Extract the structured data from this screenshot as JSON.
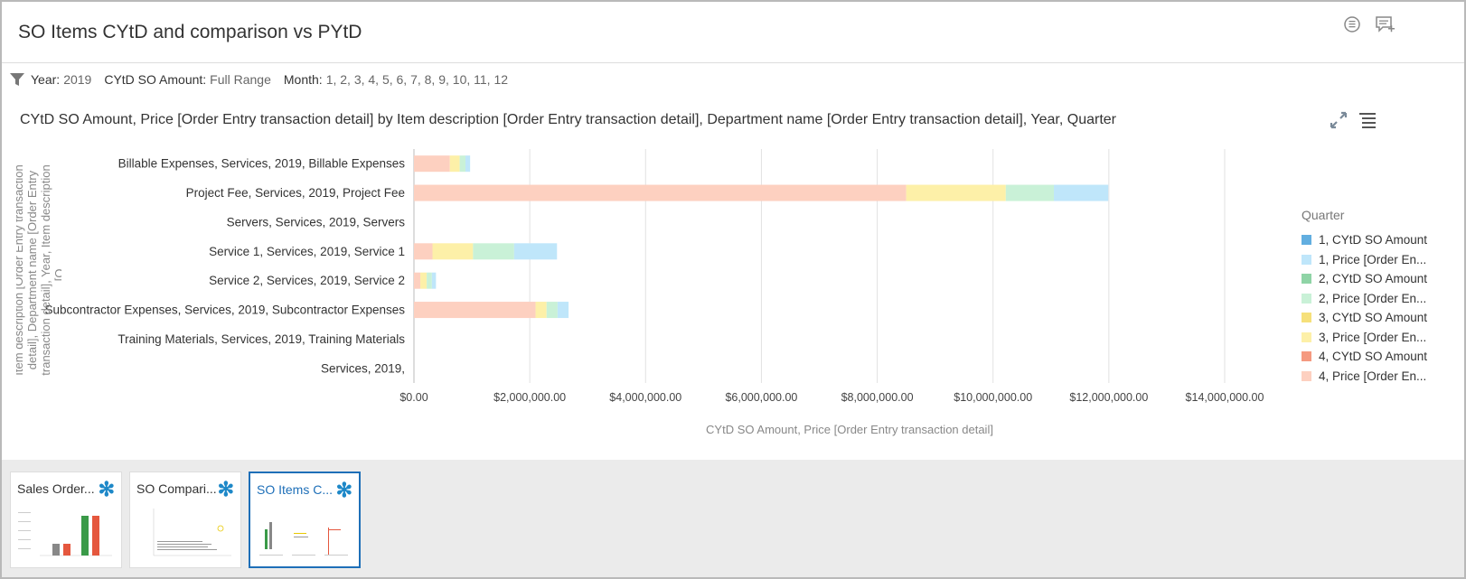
{
  "header": {
    "title": "SO Items CYtD and comparison vs PYtD",
    "icons": [
      "comments-icon",
      "add-note-icon"
    ]
  },
  "filters": [
    {
      "label": "Year:",
      "value": "2019"
    },
    {
      "label": "CYtD SO Amount:",
      "value": "Full Range"
    },
    {
      "label": "Month:",
      "value": "1, 2, 3, 4, 5, 6, 7, 8, 9, 10, 11, 12"
    }
  ],
  "chart_data": {
    "type": "bar",
    "orientation": "horizontal",
    "stacked": true,
    "title": "CYtD SO Amount, Price [Order Entry transaction detail] by Item description [Order Entry transaction detail], Department name [Order Entry transaction detail], Year, Quarter",
    "xlabel": "CYtD SO Amount, Price [Order Entry transaction detail]",
    "ylabel": "Item description [Order Entry transaction detail], Department name [Order Entry transaction detail], Year, Item description [O...",
    "xlim": [
      0,
      14000000
    ],
    "xticks": [
      "$0.00",
      "$2,000,000.00",
      "$4,000,000.00",
      "$6,000,000.00",
      "$8,000,000.00",
      "$10,000,000.00",
      "$12,000,000.00",
      "$14,000,000.00"
    ],
    "categories": [
      "Billable Expenses, Services, 2019, Billable Expenses",
      "Project Fee, Services, 2019, Project Fee",
      "Servers, Services, 2019, Servers",
      "Service 1, Services, 2019, Service 1",
      "Service 2, Services, 2019, Service 2",
      "Subcontractor Expenses, Services, 2019, Subcontractor Expenses",
      "Training Materials, Services, 2019, Training Materials",
      "Services, 2019,"
    ],
    "legend_title": "Quarter",
    "legend_placement": "right",
    "grid": true,
    "series": [
      {
        "name": "4, Price [Order En...",
        "color": "#fdd0c0",
        "values": [
          620000,
          8500000,
          0,
          320000,
          110000,
          2100000,
          0,
          0
        ]
      },
      {
        "name": "3, Price [Order En...",
        "color": "#fdf0a8",
        "values": [
          170000,
          1720000,
          0,
          700000,
          110000,
          190000,
          0,
          0
        ]
      },
      {
        "name": "2, Price [Order En...",
        "color": "#c9f1d7",
        "values": [
          100000,
          830000,
          0,
          710000,
          90000,
          190000,
          0,
          0
        ]
      },
      {
        "name": "1, Price [Order En...",
        "color": "#bfe6fa",
        "values": [
          80000,
          940000,
          0,
          740000,
          70000,
          190000,
          0,
          0
        ]
      }
    ],
    "legend": [
      {
        "name": "1, CYtD SO Amount",
        "color": "#62aee0"
      },
      {
        "name": "1, Price [Order En...",
        "color": "#bfe6fa"
      },
      {
        "name": "2, CYtD SO Amount",
        "color": "#8fd4a6"
      },
      {
        "name": "2, Price [Order En...",
        "color": "#c9f1d7"
      },
      {
        "name": "3, CYtD SO Amount",
        "color": "#f6e07a"
      },
      {
        "name": "3, Price [Order En...",
        "color": "#fdf0a8"
      },
      {
        "name": "4, CYtD SO Amount",
        "color": "#f59a80"
      },
      {
        "name": "4, Price [Order En...",
        "color": "#fdd0c0"
      }
    ]
  },
  "chart_tools": [
    "expand-icon",
    "menu-icon"
  ],
  "thumbnails": [
    {
      "title": "Sales Order...",
      "active": false
    },
    {
      "title": "SO Compari...",
      "active": false
    },
    {
      "title": "SO Items C...",
      "active": true
    }
  ],
  "colors": {
    "accent": "#1e6fb8",
    "star": "#1e88c8",
    "grid": "#e2e2e2"
  }
}
